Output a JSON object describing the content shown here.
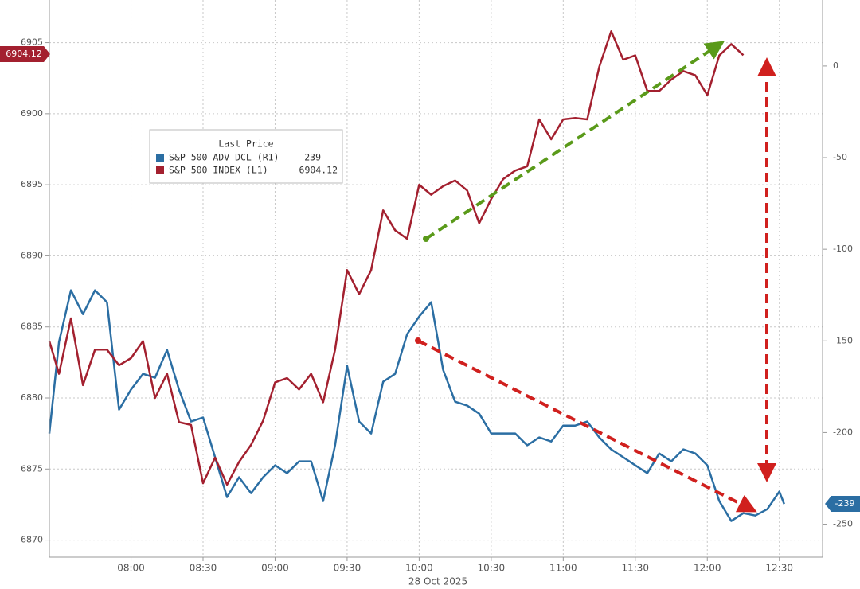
{
  "chart_data": {
    "type": "line",
    "legend_title": "Last Price",
    "x_label": "28 Oct 2025",
    "x": [
      "07:26",
      "07:30",
      "07:35",
      "07:40",
      "07:45",
      "07:50",
      "07:55",
      "08:00",
      "08:05",
      "08:10",
      "08:15",
      "08:20",
      "08:25",
      "08:30",
      "08:35",
      "08:40",
      "08:45",
      "08:50",
      "08:55",
      "09:00",
      "09:05",
      "09:10",
      "09:15",
      "09:20",
      "09:25",
      "09:30",
      "09:35",
      "09:40",
      "09:45",
      "09:50",
      "09:55",
      "10:00",
      "10:05",
      "10:10",
      "10:15",
      "10:20",
      "10:25",
      "10:30",
      "10:35",
      "10:40",
      "10:45",
      "10:50",
      "10:55",
      "11:00",
      "11:05",
      "11:10",
      "11:15",
      "11:20",
      "11:25",
      "11:30",
      "11:35",
      "11:40",
      "11:45",
      "11:50",
      "11:55",
      "12:00",
      "12:05",
      "12:10",
      "12:15",
      "12:20",
      "12:25",
      "12:30",
      "12:32"
    ],
    "xlim": [
      "07:26",
      "12:48"
    ],
    "xticks": [
      "08:00",
      "08:30",
      "09:00",
      "09:30",
      "10:00",
      "10:30",
      "11:00",
      "11:30",
      "12:00",
      "12:30"
    ],
    "ylim": [
      6868.8,
      6908.0
    ],
    "yticks": [
      6870,
      6875,
      6880,
      6885,
      6890,
      6895,
      6900,
      6905
    ],
    "y2lim": [
      -268,
      36
    ],
    "y2ticks": [
      -250,
      -200,
      -150,
      -100,
      -50,
      0
    ],
    "grid": true,
    "series": [
      {
        "name": "S&P 500 ADV-DCL  (R1)",
        "color": "#2b6ea3",
        "axis": "y2",
        "values": [
          -200.5,
          -150.6,
          -122.4,
          -135.4,
          -122.4,
          -128.9,
          -187.5,
          -176.6,
          -168.0,
          -170.1,
          -154.9,
          -176.6,
          -194.0,
          -191.8,
          -213.5,
          -235.2,
          -224.4,
          -233.1,
          -224.4,
          -217.9,
          -222.2,
          -215.7,
          -215.7,
          -237.4,
          -207.0,
          -163.6,
          -194.0,
          -200.5,
          -172.3,
          -168.0,
          -146.3,
          -136.7,
          -128.9,
          -165.8,
          -183.2,
          -185.3,
          -189.7,
          -200.5,
          -200.5,
          -200.5,
          -207.0,
          -202.7,
          -204.9,
          -196.2,
          -196.2,
          -194.0,
          -202.7,
          -209.2,
          -213.5,
          -217.9,
          -222.2,
          -211.4,
          -215.7,
          -209.2,
          -211.4,
          -217.9,
          -237.4,
          -248.3,
          -244.0,
          -245.3,
          -241.8,
          -232.2,
          -239
        ]
      },
      {
        "name": "S&P 500 INDEX  (L1)",
        "color": "#a3202f",
        "axis": "y",
        "values": [
          6884.0,
          6881.7,
          6885.6,
          6880.9,
          6883.4,
          6883.4,
          6882.3,
          6882.8,
          6884.0,
          6880.0,
          6881.7,
          6878.3,
          6878.1,
          6874.0,
          6875.8,
          6873.9,
          6875.5,
          6876.7,
          6878.4,
          6881.1,
          6881.4,
          6880.6,
          6881.7,
          6879.7,
          6883.4,
          6889.0,
          6887.3,
          6889.0,
          6893.2,
          6891.8,
          6891.2,
          6895.0,
          6894.3,
          6894.9,
          6895.3,
          6894.6,
          6892.3,
          6894.0,
          6895.4,
          6896.0,
          6896.3,
          6899.6,
          6898.2,
          6899.6,
          6899.7,
          6899.6,
          6903.3,
          6905.8,
          6903.8,
          6904.1,
          6901.6,
          6901.6,
          6902.4,
          6903.0,
          6902.7,
          6901.3,
          6904.1,
          6904.9,
          6904.12,
          null,
          null,
          null,
          null
        ]
      }
    ]
  }
}
